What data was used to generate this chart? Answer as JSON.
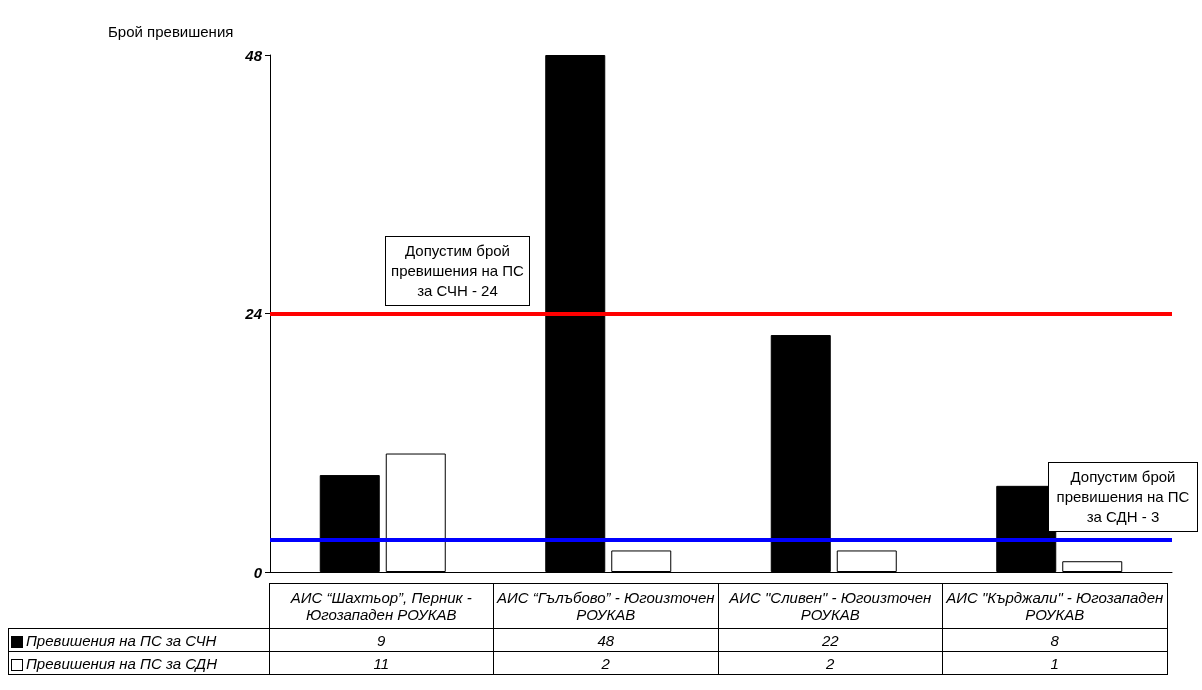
{
  "chart_data": {
    "type": "bar",
    "ylabel": "Брой превишения",
    "categories": [
      "АИС “Шахтьор”, Перник - Югозападен РОУКАВ",
      "АИС “Гълъбово” - Югоизточен РОУКАВ",
      "АИС \"Сливен\"  - Югоизточен РОУКАВ",
      "АИС \"Кърджали\" - Югозападен РОУКАВ"
    ],
    "series": [
      {
        "name": "Превишения на ПС за СЧН",
        "color": "#000000",
        "values": [
          9,
          48,
          22,
          8
        ]
      },
      {
        "name": "Превишения на ПС за СДН",
        "color": "#ffffff",
        "values": [
          11,
          2,
          2,
          1
        ]
      }
    ],
    "ylim": [
      0,
      48
    ],
    "yticks": [
      0,
      24,
      48
    ],
    "legend": "bottom",
    "data_labels": true,
    "ref_lines": [
      {
        "axis": "y",
        "value": 24,
        "label": "Допустим брой превишения на ПС за СЧН - 24",
        "color": "#ff0000"
      },
      {
        "axis": "y",
        "value": 3,
        "label": "Допустим брой превишения на ПС за СДН - 3",
        "color": "#0000ff"
      }
    ]
  }
}
